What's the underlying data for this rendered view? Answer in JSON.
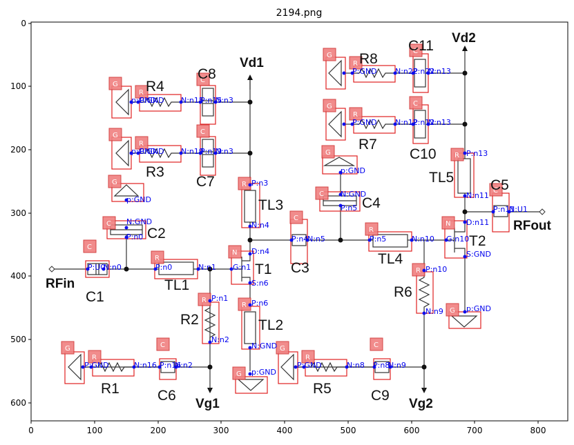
{
  "figure": {
    "title": "2194.png",
    "x_ticks": [
      "0",
      "100",
      "200",
      "300",
      "400",
      "500",
      "600",
      "700",
      "800"
    ],
    "y_ticks": [
      "0",
      "100",
      "200",
      "300",
      "400",
      "500",
      "600"
    ]
  },
  "labels": {
    "vd1": "Vd1",
    "vd2": "Vd2",
    "vg1": "Vg1",
    "vg2": "Vg2",
    "rfin": "RFin",
    "rfout": "RFout",
    "r1": "R1",
    "r2": "R2",
    "r3": "R3",
    "r4": "R4",
    "r5": "R5",
    "r6": "R6",
    "r7": "R7",
    "r8": "R8",
    "c1": "C1",
    "c2": "C2",
    "c3": "C3",
    "c4": "C4",
    "c5": "C5",
    "c6": "C6",
    "c7": "C7",
    "c8": "C8",
    "c9": "C9",
    "c10": "C10",
    "c11": "C11",
    "tl1": "TL1",
    "tl2": "TL2",
    "tl3": "TL3",
    "tl4": "TL4",
    "tl5": "TL5",
    "t1": "T1",
    "t2": "T2"
  },
  "tags": {
    "g": "G",
    "r": "R",
    "c": "C",
    "n": "N"
  },
  "pins": {
    "r4_p": "P:GND",
    "r4_n": "N:n15",
    "c8_p": "P:n15",
    "c8_n": "N:n3",
    "r3_p": "P:GND",
    "r3_n": "N:n19",
    "c7_p": "P:n19",
    "c7_n": "N:n3",
    "g_r4": "p:GND",
    "g_r3": "p:GND",
    "g_c2": "p:GND",
    "c2_n": "N:GND",
    "c2_p": "P:n0",
    "c1_p": "P:U0",
    "c1_n": "N:n0",
    "tl1_p": "P:n0",
    "tl1_n": "N:n1",
    "tl3_p": "P:n3",
    "tl3_n": "N:n4",
    "t1_d": "D:n4",
    "t1_g": "G:n1",
    "t1_s": "S:n6",
    "r2_p": "P:n1",
    "r2_n": "N:n2",
    "tl2_p": "P:n6",
    "tl2_n": "N:GND",
    "g_tl2": "p:GND",
    "r1_p": "P:GND",
    "r1_n": "N:n16",
    "c6_p": "P:n16",
    "c6_n": "N:n2",
    "r5_p": "P:GND",
    "r5_n": "N:n8",
    "c9_p": "P:n8",
    "c9_n": "N:n9",
    "c3_p": "P:n4",
    "c3_n": "N:n5",
    "c4_n": "N:GND",
    "c4_p": "P:n5",
    "g_c4": "p:GND",
    "tl4_p": "P:n5",
    "tl4_n": "N:n10",
    "r8_p": "P:GND",
    "r8_n": "N:n22",
    "c11_p": "P:n22",
    "c11_n": "N:n13",
    "r7_p": "P:GND",
    "r7_n": "N:n12",
    "c10_p": "P:n12",
    "c10_n": "N:n13",
    "tl5_p": "P:n13",
    "tl5_n": "N:n11",
    "c5_p": "P:n11",
    "c5_n": "N:U1",
    "t2_d": "D:n11",
    "t2_g": "G:n10",
    "t2_s": "S:GND",
    "r6_p": "P:n10",
    "r6_n": "N:n9",
    "g_t2": "p:GND"
  }
}
